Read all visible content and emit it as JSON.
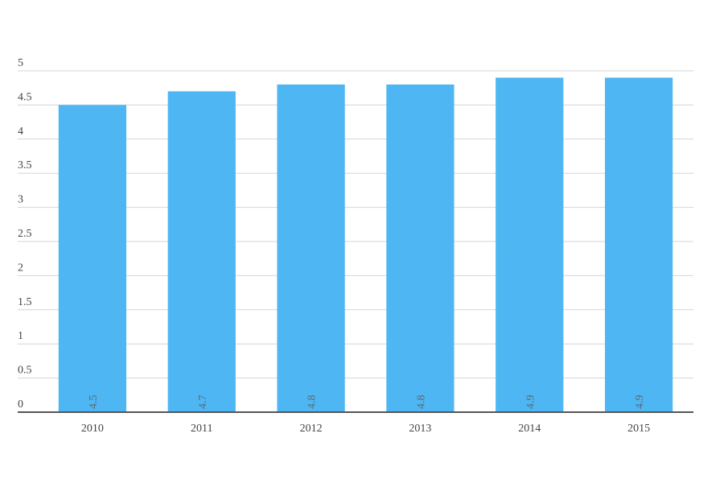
{
  "chart_data": {
    "type": "bar",
    "categories": [
      "2010",
      "2011",
      "2012",
      "2013",
      "2014",
      "2015"
    ],
    "values": [
      4.5,
      4.7,
      4.8,
      4.8,
      4.9,
      4.9
    ],
    "color": "#4db6f3",
    "ylim": [
      0,
      5
    ],
    "yticks": [
      0,
      0.5,
      1,
      1.5,
      2,
      2.5,
      3,
      3.5,
      4,
      4.5,
      5
    ],
    "grid": true
  }
}
